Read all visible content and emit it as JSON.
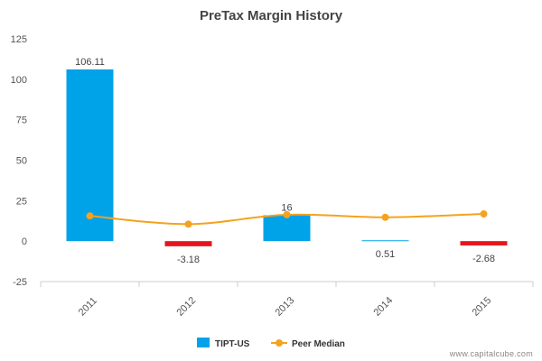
{
  "chart_data": {
    "type": "bar",
    "title": "PreTax Margin History",
    "categories": [
      "2011",
      "2012",
      "2013",
      "2014",
      "2015"
    ],
    "ylim": [
      -25,
      125
    ],
    "yticks": [
      -25,
      0,
      25,
      50,
      75,
      100,
      125
    ],
    "grid": false,
    "legend_position": "bottom",
    "series": [
      {
        "name": "TIPT-US",
        "type": "bar",
        "values": [
          106.11,
          -3.18,
          16,
          0.51,
          -2.68
        ],
        "data_labels": [
          "106.11",
          "-3.18",
          "16",
          "0.51",
          "-2.68"
        ],
        "color": "#00A2E8",
        "negative_color": "#E8141B"
      },
      {
        "name": "Peer Median",
        "type": "line",
        "values": [
          15.6,
          10.5,
          16.3,
          14.7,
          16.8
        ],
        "color": "#F5A21E"
      }
    ]
  },
  "watermark": "www.capitalcube.com"
}
